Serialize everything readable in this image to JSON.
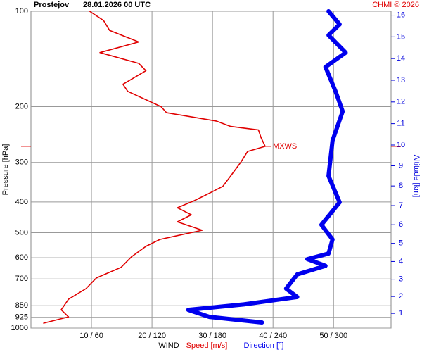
{
  "chart_data": {
    "type": "profile",
    "station": "Prostejov",
    "time": "28.01.2026 00 UTC",
    "credit": "CHMI © 2026",
    "ylabel": "Pressure [hPa]",
    "y2label": "Altitude [km]",
    "xlabel": "WIND",
    "ylim": [
      100,
      1000
    ],
    "y_log": true,
    "yticks": [
      100,
      200,
      300,
      400,
      500,
      600,
      700,
      850,
      925,
      1000
    ],
    "y2ticks": [
      1,
      2,
      3,
      4,
      5,
      6,
      7,
      8,
      9,
      10,
      11,
      12,
      13,
      14,
      15,
      16
    ],
    "y2color": "#0000dd",
    "xlim": [
      0,
      59.5
    ],
    "x2lim": [
      0,
      357
    ],
    "xticks": [
      {
        "value": 10,
        "label": "10 / 60"
      },
      {
        "value": 20,
        "label": "20 / 120"
      },
      {
        "value": 30,
        "label": "30 / 180"
      },
      {
        "value": 40,
        "label": "40 / 240"
      },
      {
        "value": 50,
        "label": "50 / 300"
      }
    ],
    "grid": true,
    "series": [
      {
        "name": "Speed [m/s]",
        "color": "#e00000",
        "pressure": [
          100,
          107,
          115,
          125,
          135,
          146,
          154,
          170,
          179,
          200,
          209,
          222,
          231,
          237,
          250,
          267,
          277,
          299,
          331,
          357,
          376,
          396,
          417,
          439,
          462,
          491,
          525,
          552,
          596,
          643,
          695,
          751,
          811,
          876,
          922,
          965
        ],
        "values": [
          9.7,
          12,
          13,
          17.8,
          11.4,
          17.8,
          19,
          15.2,
          16,
          21.5,
          22.4,
          30.6,
          33,
          37.6,
          38,
          38.7,
          35.8,
          34.7,
          33,
          31.7,
          29.4,
          27,
          24.2,
          26.5,
          24.2,
          28.3,
          21.3,
          19,
          16.6,
          14.9,
          10.8,
          9.1,
          6.2,
          5,
          6.2,
          2.1
        ]
      },
      {
        "name": "Direction [°]",
        "color": "#0000ee",
        "axis": "x2",
        "pressure": [
          100,
          110,
          119,
          135,
          150,
          179,
          207,
          256,
          331,
          401,
          472,
          525,
          582,
          606,
          636,
          677,
          751,
          798,
          842,
          876,
          922,
          960
        ],
        "values": [
          295,
          306,
          295,
          312,
          292,
          302,
          309,
          299,
          295,
          306,
          288,
          299,
          295,
          274,
          292,
          264,
          253,
          264,
          211,
          156,
          177,
          229
        ]
      }
    ],
    "mxws": {
      "label": "MXWS",
      "pressure": 267
    }
  }
}
